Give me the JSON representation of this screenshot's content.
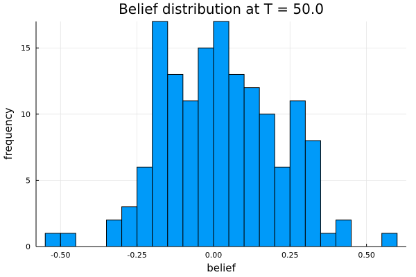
{
  "chart_data": {
    "type": "bar",
    "title": "Belief distribution at T = 50.0",
    "xlabel": "belief",
    "ylabel": "frequency",
    "bin_width": 0.05,
    "bins": [
      {
        "x0": -0.55,
        "x1": -0.5,
        "count": 1
      },
      {
        "x0": -0.5,
        "x1": -0.45,
        "count": 1
      },
      {
        "x0": -0.35,
        "x1": -0.3,
        "count": 2
      },
      {
        "x0": -0.3,
        "x1": -0.25,
        "count": 3
      },
      {
        "x0": -0.25,
        "x1": -0.2,
        "count": 6
      },
      {
        "x0": -0.2,
        "x1": -0.15,
        "count": 17
      },
      {
        "x0": -0.15,
        "x1": -0.1,
        "count": 13
      },
      {
        "x0": -0.1,
        "x1": -0.05,
        "count": 11
      },
      {
        "x0": -0.05,
        "x1": 0.0,
        "count": 15
      },
      {
        "x0": 0.0,
        "x1": 0.05,
        "count": 17
      },
      {
        "x0": 0.05,
        "x1": 0.1,
        "count": 13
      },
      {
        "x0": 0.1,
        "x1": 0.15,
        "count": 12
      },
      {
        "x0": 0.15,
        "x1": 0.2,
        "count": 10
      },
      {
        "x0": 0.2,
        "x1": 0.25,
        "count": 6
      },
      {
        "x0": 0.25,
        "x1": 0.3,
        "count": 11
      },
      {
        "x0": 0.3,
        "x1": 0.35,
        "count": 8
      },
      {
        "x0": 0.35,
        "x1": 0.4,
        "count": 1
      },
      {
        "x0": 0.4,
        "x1": 0.45,
        "count": 2
      },
      {
        "x0": 0.55,
        "x1": 0.6,
        "count": 1
      }
    ],
    "xlim": [
      -0.58,
      0.63
    ],
    "ylim": [
      0,
      17
    ],
    "xticks": [
      -0.5,
      -0.25,
      0.0,
      0.25,
      0.5
    ],
    "xtick_labels": [
      "-0.50",
      "-0.25",
      "0.00",
      "0.25",
      "0.50"
    ],
    "yticks": [
      0,
      5,
      10,
      15
    ],
    "ytick_labels": [
      "0",
      "5",
      "10",
      "15"
    ],
    "grid": true,
    "legend": "none",
    "colors": {
      "bar_fill": "#009af9",
      "bar_edge": "#000000",
      "grid": "#e5e5e5",
      "axis": "#000000"
    }
  }
}
